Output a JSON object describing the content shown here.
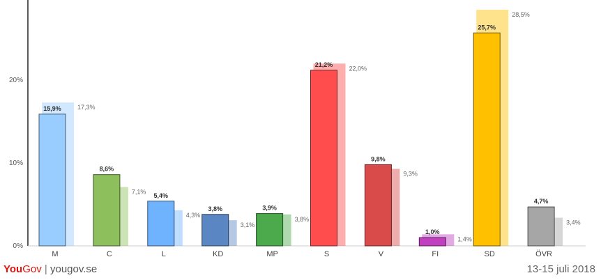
{
  "footer": {
    "brand_you": "You",
    "brand_gov": "Gov",
    "separator": "|",
    "site": "yougov.se",
    "date": "13-15 juli 2018"
  },
  "chart_data": {
    "type": "bar",
    "categories": [
      "M",
      "C",
      "L",
      "KD",
      "MP",
      "S",
      "V",
      "FI",
      "SD",
      "ÖVR"
    ],
    "series": [
      {
        "values": [
          15.9,
          8.6,
          5.4,
          3.8,
          3.9,
          21.2,
          9.8,
          1.0,
          25.7,
          4.7
        ]
      },
      {
        "values": [
          17.3,
          7.1,
          4.3,
          3.1,
          3.8,
          22.0,
          9.3,
          1.4,
          28.5,
          3.4
        ]
      }
    ],
    "labels_current": [
      "15,9%",
      "8,6%",
      "5,4%",
      "3,8%",
      "3,9%",
      "21,2%",
      "9,8%",
      "1,0%",
      "25,7%",
      "4,7%"
    ],
    "labels_previous": [
      "17,3%",
      "7,1%",
      "4,3%",
      "3,1%",
      "3,8%",
      "22,0%",
      "9,3%",
      "1,4%",
      "28,5%",
      "3,4%"
    ],
    "colors": [
      "#99ccff",
      "#8dc05d",
      "#6fb3ff",
      "#5b86c4",
      "#4ca94c",
      "#ff4c4c",
      "#d94a4a",
      "#c040c0",
      "#ffc000",
      "#a6a6a6"
    ],
    "ylim": [
      0,
      29
    ],
    "yticks": [
      0,
      10,
      20
    ],
    "ytick_labels": [
      "0%",
      "10%",
      "20%"
    ],
    "grid": false
  }
}
